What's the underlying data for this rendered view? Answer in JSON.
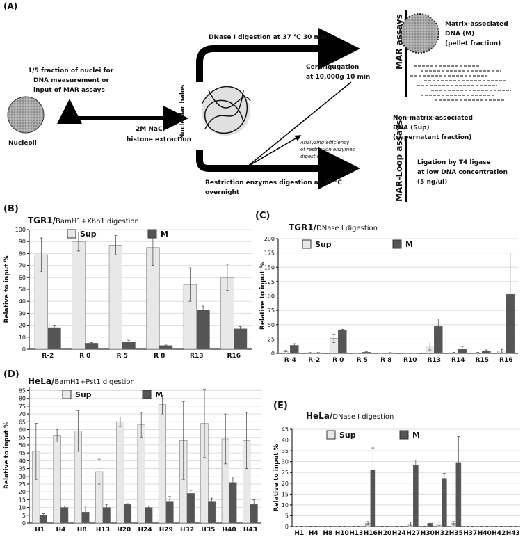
{
  "diagram": {
    "panel": "(A)",
    "texts": [
      "DNase I digestion at 37 ℃ 30 min",
      "1/5 fraction of nuclei for",
      "DNA measurement or",
      "input of MAR assays",
      "Nucleoli",
      "2M NaCl",
      "histone extraction",
      "Nucleolar halos",
      "Centrigugation",
      "at 10,000g 10 min",
      "MAR assays",
      "Matrix-associated",
      "DNA (M)",
      "(pellet fraction)",
      "Non-matrix-associated",
      "DNA (Sup)",
      "(supernatant fraction)",
      "Analyzing efficiency",
      "of restriction enzymes",
      "digestion",
      "MAR-Loop assays",
      "Ligation by T4 ligase",
      "at low DNA concentration",
      "(5 ng/ul)",
      "Restriction enzymes digestion at 37 ℃",
      "overnight"
    ]
  },
  "chart_data": [
    {
      "type": "bar",
      "panel": "(B)",
      "title": "TGR1/",
      "subtitle": "BamH1+Xho1 digestion",
      "y_label": "Relative to input %",
      "categories": [
        "R-2",
        "R 0",
        "R 5",
        "R 8",
        "R13",
        "R16"
      ],
      "series": [
        {
          "name": "Sup",
          "color": "#e8e8e8",
          "values": [
            79,
            90,
            87,
            85,
            54,
            60
          ],
          "errors": [
            14,
            8,
            8,
            15,
            14,
            11
          ]
        },
        {
          "name": "M",
          "color": "#555555",
          "values": [
            18,
            5,
            6,
            3,
            33,
            17
          ],
          "errors": [
            2,
            0.5,
            1.5,
            0.5,
            3,
            2
          ]
        }
      ],
      "ylim": [
        0,
        100
      ],
      "yticks": [
        0,
        10,
        20,
        30,
        40,
        50,
        60,
        70,
        80,
        90,
        100
      ],
      "grid": true
    },
    {
      "type": "bar",
      "panel": "(C)",
      "title": "TGR1/",
      "subtitle": "DNase I digestion",
      "y_label": "Relative to input %",
      "categories": [
        "R-4",
        "R-2",
        "R 0",
        "R 5",
        "R 8",
        "R10",
        "R13",
        "R14",
        "R15",
        "R16"
      ],
      "series": [
        {
          "name": "Sup",
          "color": "#e8e8e8",
          "values": [
            4,
            1,
            26,
            0.5,
            0.5,
            0.5,
            13,
            1,
            1,
            4
          ],
          "errors": [
            1,
            0.5,
            7,
            0.3,
            0.3,
            0.3,
            7,
            1,
            1,
            3
          ]
        },
        {
          "name": "M",
          "color": "#555555",
          "values": [
            14,
            1,
            41,
            2,
            1,
            0.5,
            47,
            7,
            4,
            103
          ],
          "errors": [
            3,
            0.5,
            1,
            1,
            0.3,
            0.3,
            13,
            5,
            2,
            72
          ]
        }
      ],
      "ylim": [
        0,
        200
      ],
      "yticks": [
        0,
        25,
        50,
        75,
        100,
        125,
        150,
        175,
        200
      ],
      "grid": true
    },
    {
      "type": "bar",
      "panel": "(D)",
      "title": "HeLa/",
      "subtitle": "BamH1+Pst1 digestion",
      "y_label": "Relative to input %",
      "categories": [
        "H1",
        "H4",
        "H8",
        "H13",
        "H20",
        "H24",
        "H29",
        "H32",
        "H35",
        "H40",
        "H43"
      ],
      "series": [
        {
          "name": "Sup",
          "color": "#e8e8e8",
          "values": [
            46,
            56,
            59,
            33,
            65,
            63,
            76,
            53,
            64,
            54,
            53
          ],
          "errors": [
            18,
            4,
            13,
            8,
            3,
            8,
            6,
            25,
            22,
            16,
            18
          ]
        },
        {
          "name": "M",
          "color": "#555555",
          "values": [
            5,
            10,
            7,
            10,
            12,
            10,
            14,
            19,
            14,
            26,
            12
          ],
          "errors": [
            1,
            1,
            4,
            2,
            0.5,
            1,
            3,
            2,
            2,
            3,
            3
          ]
        }
      ],
      "ylim": [
        0,
        87
      ],
      "yticks": [
        0,
        5,
        10,
        15,
        20,
        25,
        30,
        35,
        40,
        45,
        50,
        55,
        60,
        65,
        70,
        75,
        80,
        85
      ],
      "grid": true
    },
    {
      "type": "bar",
      "panel": "(E)",
      "title": "HeLa/",
      "subtitle": "DNase I digestion",
      "y_label": "Relative to input %",
      "categories": [
        "H1",
        "H4",
        "H8",
        "H10",
        "H13",
        "H16",
        "H20",
        "H24",
        "H27",
        "H30",
        "H32",
        "H35",
        "H37",
        "H40",
        "H42",
        "H43"
      ],
      "series": [
        {
          "name": "Sup",
          "color": "#e8e8e8",
          "values": [
            0.1,
            0.1,
            0.1,
            0.1,
            0.1,
            1.5,
            0.1,
            0.1,
            1.2,
            0.1,
            1.2,
            1.5,
            0.1,
            0.1,
            0.1,
            0.1
          ],
          "errors": [
            0.1,
            0.1,
            0.1,
            0.1,
            0.1,
            0.8,
            0.1,
            0.1,
            0.8,
            0.1,
            0.8,
            0.8,
            0.1,
            0.1,
            0.1,
            0.1
          ]
        },
        {
          "name": "M",
          "color": "#555555",
          "values": [
            0.1,
            0.1,
            0.1,
            0.1,
            0.1,
            26.3,
            0.1,
            0.1,
            28.4,
            1.5,
            22.3,
            29.6,
            0.1,
            0.1,
            0.1,
            0.1
          ],
          "errors": [
            0.1,
            0.1,
            0.1,
            0.1,
            0.1,
            10,
            0.1,
            0.1,
            2.3,
            0.5,
            2.3,
            12,
            0.1,
            0.1,
            0.1,
            0.1
          ]
        }
      ],
      "ylim": [
        0,
        45
      ],
      "yticks": [
        0,
        5,
        10,
        15,
        20,
        25,
        30,
        35,
        40,
        45
      ],
      "grid": true
    }
  ]
}
